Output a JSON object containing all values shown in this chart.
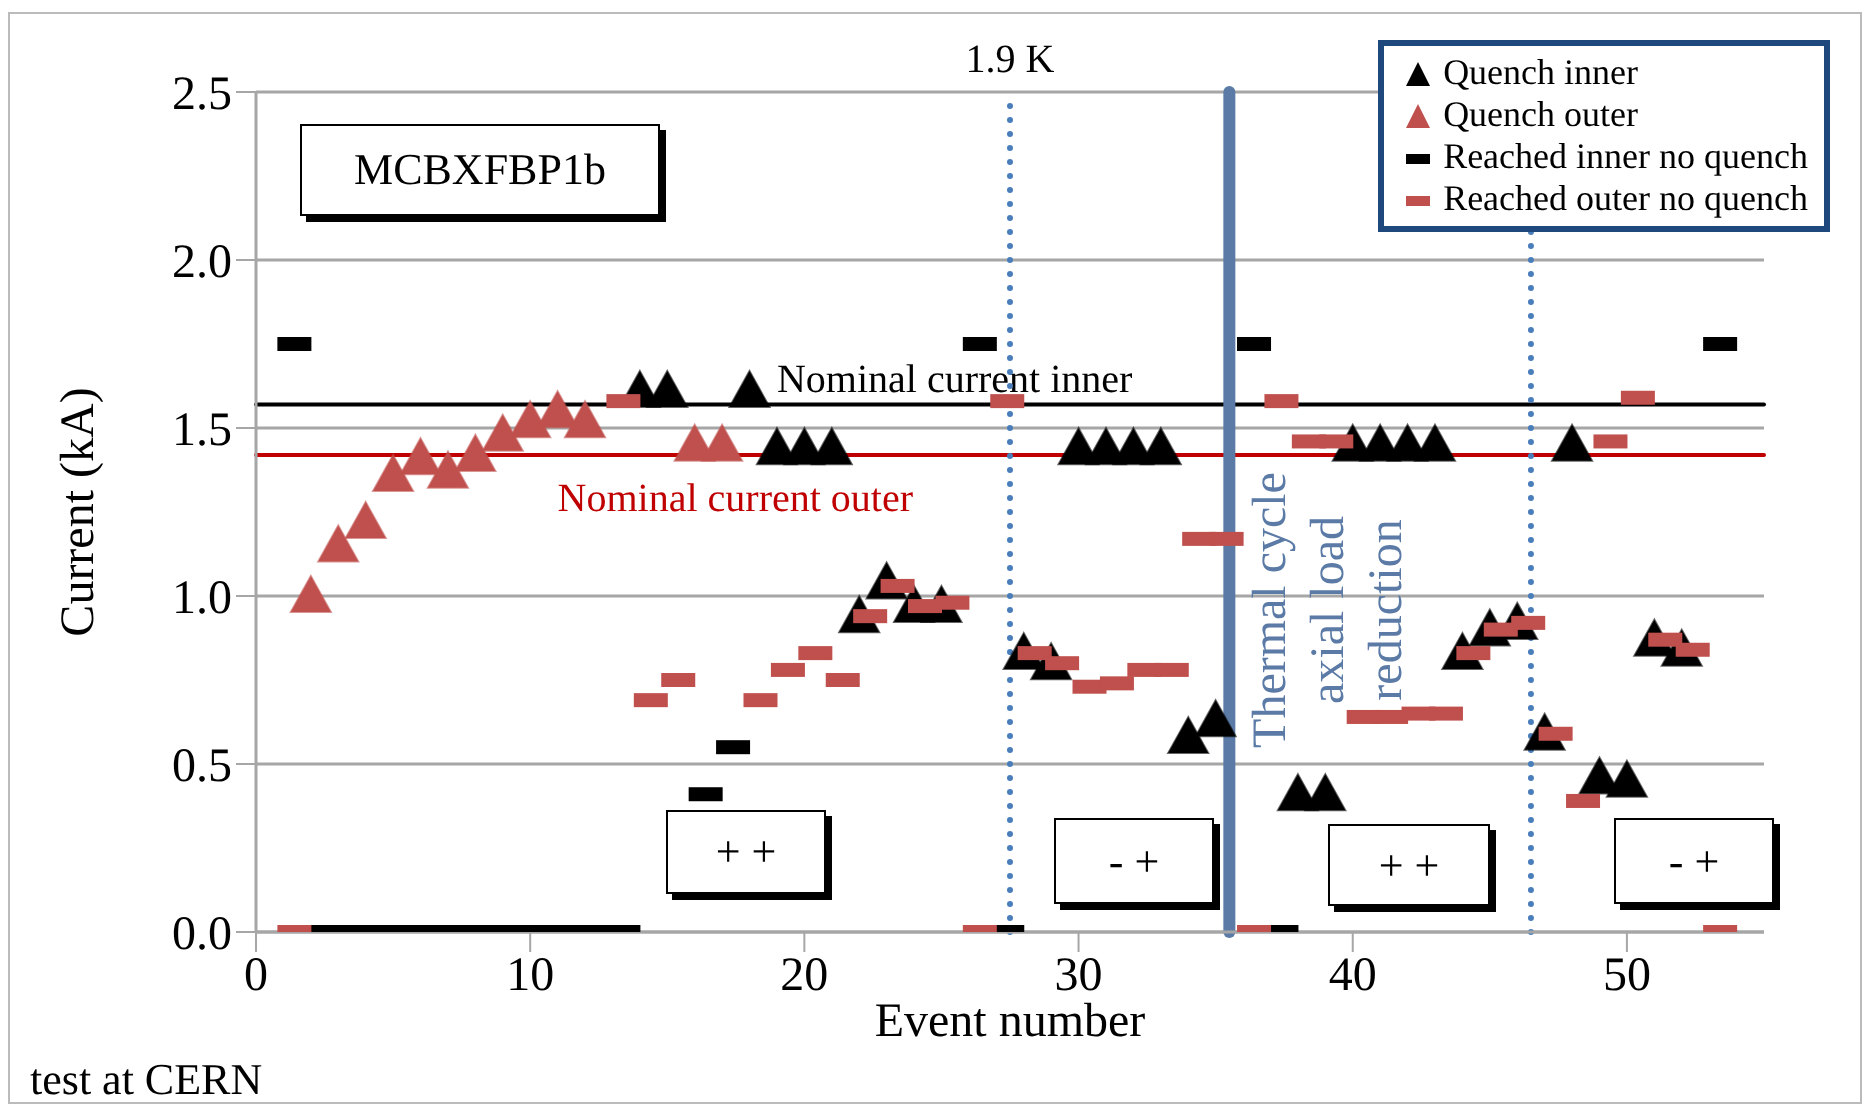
{
  "chart_data": {
    "type": "scatter",
    "xlabel": "Event number",
    "ylabel": "Current (kA)",
    "xlim": [
      0,
      55
    ],
    "xticks": [
      0,
      10,
      20,
      30,
      40,
      50
    ],
    "ylim": [
      0,
      2.5
    ],
    "yticks": [
      {
        "value": 0,
        "label": "0.0"
      },
      {
        "value": 0.5,
        "label": "0.5"
      },
      {
        "value": 1,
        "label": "1.0"
      },
      {
        "value": 1.5,
        "label": "1.5"
      },
      {
        "value": 2,
        "label": "2.0"
      },
      {
        "value": 2.5,
        "label": "2.5"
      }
    ],
    "grid": "y",
    "legend": "top right",
    "series": [
      {
        "name": "Quench inner",
        "color": "#000000",
        "marker": "triangle",
        "x": [
          14,
          15,
          18,
          19,
          20,
          21,
          22,
          23,
          24,
          25,
          28,
          29,
          30,
          31,
          32,
          33,
          34,
          35,
          38,
          39,
          40,
          41,
          42,
          43,
          44,
          45,
          46,
          47,
          48,
          49,
          50,
          51,
          52
        ],
        "values": [
          1.61,
          1.61,
          1.61,
          1.44,
          1.44,
          1.44,
          0.94,
          1.04,
          0.97,
          0.97,
          0.83,
          0.8,
          1.44,
          1.44,
          1.44,
          1.44,
          0.58,
          0.63,
          0.41,
          0.41,
          1.45,
          1.45,
          1.45,
          1.45,
          0.83,
          0.9,
          0.92,
          0.59,
          1.45,
          0.46,
          0.45,
          0.87,
          0.84
        ]
      },
      {
        "name": "Quench outer",
        "color": "#c0504d",
        "marker": "triangle",
        "x": [
          2,
          3,
          4,
          5,
          6,
          7,
          8,
          9,
          10,
          11,
          12,
          16,
          17
        ],
        "values": [
          1.0,
          1.15,
          1.22,
          1.36,
          1.41,
          1.37,
          1.42,
          1.48,
          1.52,
          1.55,
          1.52,
          1.45,
          1.45
        ]
      },
      {
        "name": "Reached inner no quench",
        "color": "#000000",
        "marker": "square",
        "x": [
          1.4,
          2.4,
          3.4,
          4.4,
          5.4,
          6.4,
          7.4,
          8.4,
          9.4,
          10.4,
          11.4,
          12.4,
          13.4,
          16.4,
          17.4,
          26.4,
          27.4,
          36.4,
          37.4,
          53.4
        ],
        "values": [
          1.75,
          0,
          0,
          0,
          0,
          0,
          0,
          0,
          0,
          0,
          0,
          0,
          0,
          0.41,
          0.55,
          1.75,
          0,
          1.75,
          0,
          1.75
        ]
      },
      {
        "name": "Reached outer no quench",
        "color": "#c0504d",
        "marker": "square",
        "x": [
          1.4,
          13.4,
          14.4,
          15.4,
          18.4,
          19.4,
          20.4,
          21.4,
          22.4,
          23.4,
          24.4,
          25.4,
          26.4,
          27.4,
          28.4,
          29.4,
          30.4,
          31.4,
          32.4,
          33.4,
          34.4,
          35.4,
          36.4,
          37.4,
          38.4,
          39.4,
          40.4,
          41.4,
          42.4,
          43.4,
          44.4,
          45.4,
          46.4,
          47.4,
          48.4,
          49.4,
          50.4,
          51.4,
          52.4,
          53.4
        ],
        "values": [
          0,
          1.58,
          0.69,
          0.75,
          0.69,
          0.78,
          0.83,
          0.75,
          0.94,
          1.03,
          0.97,
          0.98,
          0,
          1.58,
          0.83,
          0.8,
          0.73,
          0.74,
          0.78,
          0.78,
          1.17,
          1.17,
          0,
          1.58,
          1.46,
          1.46,
          0.64,
          0.64,
          0.65,
          0.65,
          0.83,
          0.9,
          0.92,
          0.59,
          0.39,
          1.46,
          1.59,
          0.87,
          0.84,
          0
        ]
      }
    ],
    "ref_lines": [
      {
        "axis": "y",
        "value": 1.57,
        "label": "Nominal current inner",
        "color": "#000000",
        "line_style": "solid"
      },
      {
        "axis": "y",
        "value": 1.42,
        "label": "Nominal current outer",
        "color": "#c00000",
        "line_style": "solid"
      },
      {
        "axis": "x",
        "value": 27.5,
        "label": "1.9 K",
        "color": "#4a7ebb",
        "line_style": "dotted"
      },
      {
        "axis": "x",
        "value": 35.5,
        "label": "Thermal cycle axial load reduction",
        "color": "#5b7ba6",
        "line_style": "solid"
      },
      {
        "axis": "x",
        "value": 46.5,
        "color": "#4a7ebb",
        "line_style": "dotted"
      }
    ],
    "annotations": [
      "MCBXFBP1b",
      "+ +",
      "- +",
      "+ +",
      "- +",
      "test at CERN"
    ]
  }
}
